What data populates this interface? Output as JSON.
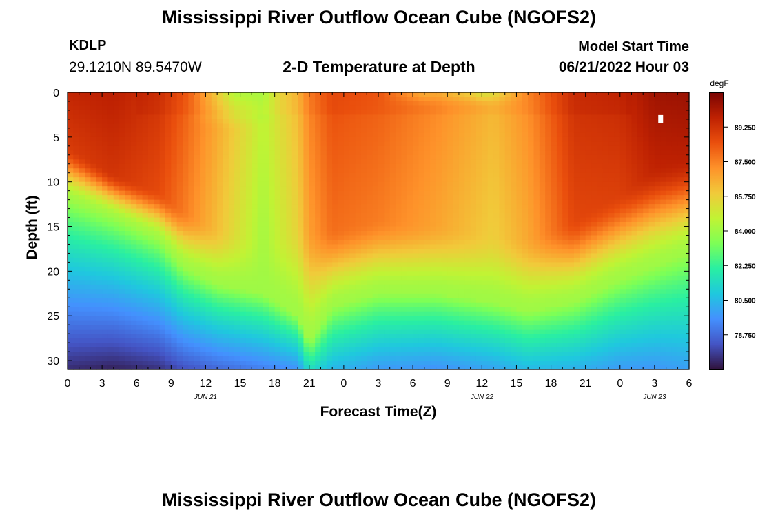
{
  "header": {
    "title": "Mississippi River Outflow Ocean Cube (NGOFS2)",
    "station_id": "KDLP",
    "station_coords": "29.1210N  89.5470W",
    "subtitle": "2-D Temperature at Depth",
    "model_start_label": "Model Start Time",
    "model_start_value": "06/21/2022 Hour 03"
  },
  "footer": {
    "title": "Mississippi River Outflow Ocean Cube (NGOFS2)"
  },
  "chart_data": {
    "type": "heatmap",
    "title": "2-D Temperature at Depth",
    "xlabel": "Forecast Time(Z)",
    "ylabel": "Depth (ft)",
    "x_tick_labels": [
      "0",
      "3",
      "6",
      "9",
      "12",
      "15",
      "18",
      "21",
      "0",
      "3",
      "6",
      "9",
      "12",
      "15",
      "18",
      "21",
      "0",
      "3",
      "6"
    ],
    "x_range_hours": [
      0,
      54
    ],
    "date_labels": [
      {
        "label": "JUN 21",
        "hour": 12
      },
      {
        "label": "JUN 22",
        "hour": 36
      },
      {
        "label": "JUN 23",
        "hour": 51
      }
    ],
    "y_ticks": [
      0,
      5,
      10,
      15,
      20,
      25,
      30
    ],
    "y_range": [
      0,
      31
    ],
    "y_inverted": true,
    "colorbar": {
      "unit": "degF",
      "labels": [
        "89.250",
        "87.500",
        "85.750",
        "84.000",
        "82.250",
        "80.500",
        "78.750"
      ],
      "range": [
        77.0,
        91.0
      ],
      "colors": [
        "#30123b",
        "#4454c4",
        "#4490fe",
        "#1fc8de",
        "#29efa2",
        "#7dff56",
        "#c1f334",
        "#f1ca3a",
        "#fe922a",
        "#ea4f0d",
        "#be2102",
        "#7a0403"
      ]
    },
    "hour_profiles": [
      {
        "hour": 0,
        "surface": 89.6,
        "mix_depth": 6,
        "cline_depth": 12,
        "bottom": 77.5
      },
      {
        "hour": 4,
        "surface": 89.8,
        "mix_depth": 9,
        "cline_depth": 14,
        "bottom": 77.3
      },
      {
        "hour": 8,
        "surface": 89.2,
        "mix_depth": 11,
        "cline_depth": 16.5,
        "bottom": 77.6
      },
      {
        "hour": 10,
        "surface": 88.3,
        "mix_depth": 13,
        "cline_depth": 19.5,
        "bottom": 78.2
      },
      {
        "hour": 13,
        "surface": 86.8,
        "mix_depth": 15,
        "cline_depth": 21.5,
        "bottom": 78.7
      },
      {
        "hour": 17,
        "surface": 84.7,
        "mix_depth": 15.5,
        "cline_depth": 22.5,
        "bottom": 79.2
      },
      {
        "hour": 20,
        "surface": 86.3,
        "mix_depth": 14.5,
        "cline_depth": 25,
        "bottom": 79.6
      },
      {
        "hour": 21,
        "surface": 87.5,
        "mix_depth": 15,
        "cline_depth": 28,
        "bottom": 81.5
      },
      {
        "hour": 23,
        "surface": 88.5,
        "mix_depth": 15,
        "cline_depth": 24,
        "bottom": 80.4
      },
      {
        "hour": 27,
        "surface": 88.2,
        "mix_depth": 14,
        "cline_depth": 22.5,
        "bottom": 79.8
      },
      {
        "hour": 32,
        "surface": 87.4,
        "mix_depth": 14.5,
        "cline_depth": 22.5,
        "bottom": 79.6
      },
      {
        "hour": 37,
        "surface": 86.4,
        "mix_depth": 15.5,
        "cline_depth": 23.5,
        "bottom": 80.0
      },
      {
        "hour": 40,
        "surface": 87.3,
        "mix_depth": 16,
        "cline_depth": 24.5,
        "bottom": 80.5
      },
      {
        "hour": 44,
        "surface": 89.3,
        "mix_depth": 14,
        "cline_depth": 23.5,
        "bottom": 80.3
      },
      {
        "hour": 48,
        "surface": 89.5,
        "mix_depth": 11,
        "cline_depth": 21,
        "bottom": 79.8
      },
      {
        "hour": 51,
        "surface": 90.3,
        "mix_depth": 8,
        "cline_depth": 19.5,
        "bottom": 79.7
      },
      {
        "hour": 54,
        "surface": 90.4,
        "mix_depth": 7,
        "cline_depth": 18,
        "bottom": 79.9
      }
    ],
    "surface_skin_cooling": [
      {
        "hour": 14.5,
        "depth_max": 4,
        "delta": -1.8
      },
      {
        "hour": 31,
        "depth_max": 1.5,
        "delta": -1.2
      },
      {
        "hour": 36,
        "depth_max": 1.5,
        "delta": -1.6
      }
    ],
    "missing_cell": {
      "hour": 51.5,
      "depth": 3
    }
  }
}
